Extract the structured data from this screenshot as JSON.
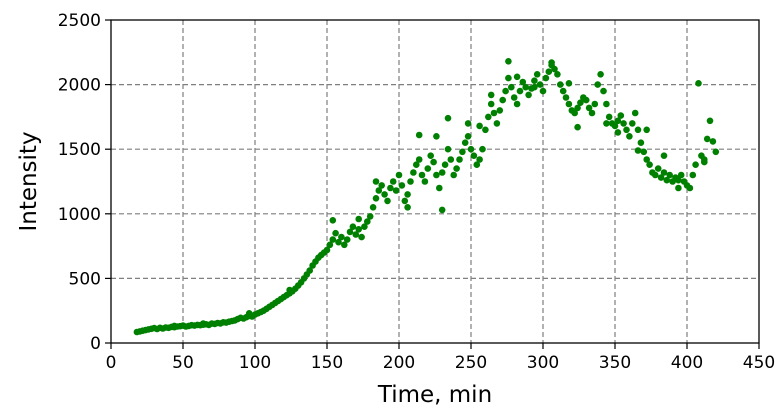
{
  "chart_data": {
    "type": "scatter",
    "xlabel": "Time, min",
    "ylabel": "Intensity",
    "xlim": [
      0,
      450
    ],
    "ylim": [
      0,
      2500
    ],
    "xticks": [
      "0",
      "50",
      "100",
      "150",
      "200",
      "250",
      "300",
      "350",
      "400",
      "450"
    ],
    "yticks": [
      "0",
      "500",
      "1000",
      "1500",
      "2000",
      "2500"
    ],
    "grid": true,
    "marker_color": "#008000",
    "series": [
      {
        "points": [
          [
            18,
            85
          ],
          [
            20,
            90
          ],
          [
            22,
            95
          ],
          [
            24,
            100
          ],
          [
            26,
            105
          ],
          [
            28,
            110
          ],
          [
            30,
            115
          ],
          [
            32,
            108
          ],
          [
            34,
            118
          ],
          [
            36,
            112
          ],
          [
            38,
            120
          ],
          [
            40,
            118
          ],
          [
            42,
            125
          ],
          [
            44,
            122
          ],
          [
            46,
            128
          ],
          [
            48,
            130
          ],
          [
            50,
            135
          ],
          [
            52,
            128
          ],
          [
            54,
            132
          ],
          [
            56,
            138
          ],
          [
            58,
            135
          ],
          [
            60,
            140
          ],
          [
            62,
            138
          ],
          [
            64,
            142
          ],
          [
            66,
            145
          ],
          [
            68,
            140
          ],
          [
            70,
            150
          ],
          [
            72,
            148
          ],
          [
            74,
            155
          ],
          [
            76,
            152
          ],
          [
            78,
            160
          ],
          [
            80,
            158
          ],
          [
            82,
            165
          ],
          [
            84,
            170
          ],
          [
            86,
            175
          ],
          [
            88,
            185
          ],
          [
            90,
            195
          ],
          [
            92,
            190
          ],
          [
            94,
            200
          ],
          [
            96,
            210
          ],
          [
            98,
            205
          ],
          [
            100,
            220
          ],
          [
            102,
            230
          ],
          [
            104,
            240
          ],
          [
            106,
            250
          ],
          [
            108,
            265
          ],
          [
            110,
            280
          ],
          [
            112,
            295
          ],
          [
            114,
            310
          ],
          [
            116,
            325
          ],
          [
            118,
            340
          ],
          [
            120,
            355
          ],
          [
            122,
            370
          ],
          [
            124,
            385
          ],
          [
            126,
            400
          ],
          [
            128,
            420
          ],
          [
            130,
            445
          ],
          [
            132,
            470
          ],
          [
            134,
            500
          ],
          [
            136,
            530
          ],
          [
            138,
            560
          ],
          [
            140,
            600
          ],
          [
            142,
            630
          ],
          [
            144,
            660
          ],
          [
            146,
            680
          ],
          [
            148,
            700
          ],
          [
            150,
            720
          ],
          [
            152,
            760
          ],
          [
            154,
            800
          ],
          [
            156,
            850
          ],
          [
            158,
            780
          ],
          [
            160,
            820
          ],
          [
            162,
            760
          ],
          [
            164,
            800
          ],
          [
            166,
            860
          ],
          [
            168,
            900
          ],
          [
            170,
            840
          ],
          [
            172,
            880
          ],
          [
            174,
            820
          ],
          [
            176,
            900
          ],
          [
            178,
            940
          ],
          [
            180,
            980
          ],
          [
            182,
            1050
          ],
          [
            184,
            1120
          ],
          [
            186,
            1180
          ],
          [
            188,
            1220
          ],
          [
            190,
            1150
          ],
          [
            192,
            1100
          ],
          [
            194,
            1200
          ],
          [
            196,
            1250
          ],
          [
            198,
            1180
          ],
          [
            200,
            1300
          ],
          [
            202,
            1220
          ],
          [
            204,
            1100
          ],
          [
            206,
            1150
          ],
          [
            208,
            1250
          ],
          [
            210,
            1320
          ],
          [
            212,
            1380
          ],
          [
            214,
            1420
          ],
          [
            216,
            1300
          ],
          [
            218,
            1250
          ],
          [
            220,
            1350
          ],
          [
            222,
            1450
          ],
          [
            224,
            1400
          ],
          [
            226,
            1300
          ],
          [
            228,
            1200
          ],
          [
            230,
            1320
          ],
          [
            232,
            1380
          ],
          [
            234,
            1500
          ],
          [
            236,
            1420
          ],
          [
            238,
            1300
          ],
          [
            240,
            1350
          ],
          [
            242,
            1420
          ],
          [
            244,
            1480
          ],
          [
            246,
            1550
          ],
          [
            248,
            1600
          ],
          [
            250,
            1500
          ],
          [
            252,
            1450
          ],
          [
            254,
            1380
          ],
          [
            256,
            1420
          ],
          [
            258,
            1500
          ],
          [
            260,
            1650
          ],
          [
            262,
            1750
          ],
          [
            264,
            1850
          ],
          [
            266,
            1780
          ],
          [
            268,
            1700
          ],
          [
            270,
            1800
          ],
          [
            272,
            1880
          ],
          [
            274,
            1950
          ],
          [
            276,
            2050
          ],
          [
            278,
            1980
          ],
          [
            280,
            1900
          ],
          [
            282,
            1850
          ],
          [
            284,
            1950
          ],
          [
            286,
            2020
          ],
          [
            288,
            1980
          ],
          [
            290,
            1920
          ],
          [
            292,
            1970
          ],
          [
            294,
            2030
          ],
          [
            296,
            2080
          ],
          [
            298,
            2000
          ],
          [
            300,
            1950
          ],
          [
            302,
            2050
          ],
          [
            304,
            2100
          ],
          [
            306,
            2150
          ],
          [
            308,
            2120
          ],
          [
            310,
            2080
          ],
          [
            312,
            2000
          ],
          [
            314,
            1950
          ],
          [
            316,
            1900
          ],
          [
            318,
            1850
          ],
          [
            320,
            1800
          ],
          [
            322,
            1780
          ],
          [
            324,
            1820
          ],
          [
            326,
            1860
          ],
          [
            328,
            1900
          ],
          [
            330,
            1880
          ],
          [
            332,
            1820
          ],
          [
            334,
            1780
          ],
          [
            336,
            1850
          ],
          [
            338,
            2000
          ],
          [
            340,
            2080
          ],
          [
            342,
            1950
          ],
          [
            344,
            1850
          ],
          [
            346,
            1750
          ],
          [
            348,
            1700
          ],
          [
            350,
            1680
          ],
          [
            352,
            1720
          ],
          [
            354,
            1760
          ],
          [
            356,
            1700
          ],
          [
            358,
            1650
          ],
          [
            360,
            1600
          ],
          [
            362,
            1700
          ],
          [
            364,
            1780
          ],
          [
            366,
            1650
          ],
          [
            368,
            1550
          ],
          [
            370,
            1480
          ],
          [
            372,
            1420
          ],
          [
            374,
            1380
          ],
          [
            376,
            1320
          ],
          [
            378,
            1300
          ],
          [
            380,
            1350
          ],
          [
            382,
            1280
          ],
          [
            384,
            1320
          ],
          [
            386,
            1260
          ],
          [
            388,
            1300
          ],
          [
            390,
            1250
          ],
          [
            392,
            1280
          ],
          [
            394,
            1260
          ],
          [
            396,
            1300
          ],
          [
            398,
            1250
          ],
          [
            400,
            1220
          ],
          [
            402,
            1200
          ],
          [
            404,
            1300
          ],
          [
            406,
            1380
          ],
          [
            408,
            2010
          ],
          [
            410,
            1450
          ],
          [
            412,
            1420
          ],
          [
            414,
            1580
          ],
          [
            416,
            1720
          ],
          [
            418,
            1560
          ],
          [
            420,
            1480
          ],
          [
            44,
            132
          ],
          [
            64,
            150
          ],
          [
            96,
            230
          ],
          [
            124,
            410
          ],
          [
            154,
            950
          ],
          [
            172,
            960
          ],
          [
            184,
            1250
          ],
          [
            214,
            1610
          ],
          [
            226,
            1600
          ],
          [
            248,
            1700
          ],
          [
            264,
            1920
          ],
          [
            276,
            2180
          ],
          [
            294,
            1980
          ],
          [
            306,
            2170
          ],
          [
            324,
            1670
          ],
          [
            344,
            1700
          ],
          [
            352,
            1630
          ],
          [
            372,
            1650
          ],
          [
            384,
            1450
          ],
          [
            394,
            1200
          ],
          [
            412,
            1400
          ],
          [
            234,
            1740
          ],
          [
            256,
            1680
          ],
          [
            282,
            2060
          ],
          [
            318,
            2010
          ],
          [
            366,
            1490
          ],
          [
            206,
            1050
          ],
          [
            230,
            1030
          ]
        ]
      }
    ]
  }
}
